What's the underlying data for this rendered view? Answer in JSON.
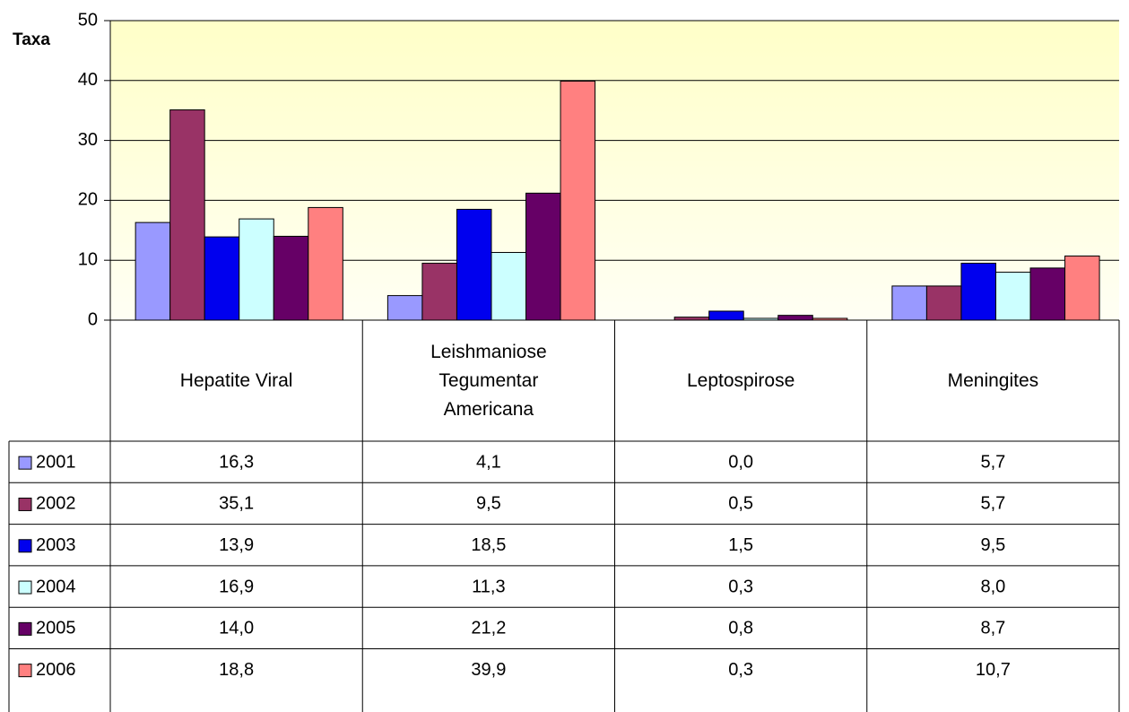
{
  "chart_data": {
    "type": "bar",
    "y_label": "Taxa",
    "categories": [
      "Hepatite Viral",
      "Leishmaniose Tegumentar Americana",
      "Leptospirose",
      "Meningites"
    ],
    "series": [
      {
        "name": "2001",
        "color": "#9999ff",
        "values": [
          16.3,
          4.1,
          0.0,
          5.7
        ],
        "value_labels": [
          "16,3",
          "4,1",
          "0,0",
          "5,7"
        ]
      },
      {
        "name": "2002",
        "color": "#993366",
        "values": [
          35.1,
          9.5,
          0.5,
          5.7
        ],
        "value_labels": [
          "35,1",
          "9,5",
          "0,5",
          "5,7"
        ]
      },
      {
        "name": "2003",
        "color": "#0000ee",
        "values": [
          13.9,
          18.5,
          1.5,
          9.5
        ],
        "value_labels": [
          "13,9",
          "18,5",
          "1,5",
          "9,5"
        ]
      },
      {
        "name": "2004",
        "color": "#ccffff",
        "values": [
          16.9,
          11.3,
          0.3,
          8.0
        ],
        "value_labels": [
          "16,9",
          "11,3",
          "0,3",
          "8,0"
        ]
      },
      {
        "name": "2005",
        "color": "#660066",
        "values": [
          14.0,
          21.2,
          0.8,
          8.7
        ],
        "value_labels": [
          "14,0",
          "21,2",
          "0,8",
          "8,7"
        ]
      },
      {
        "name": "2006",
        "color": "#ff8080",
        "values": [
          18.8,
          39.9,
          0.3,
          10.7
        ],
        "value_labels": [
          "18,8",
          "39,9",
          "0,3",
          "10,7"
        ]
      }
    ],
    "ylim": [
      0,
      50
    ],
    "yticks": [
      0,
      10,
      20,
      30,
      40,
      50
    ],
    "grid": true
  }
}
